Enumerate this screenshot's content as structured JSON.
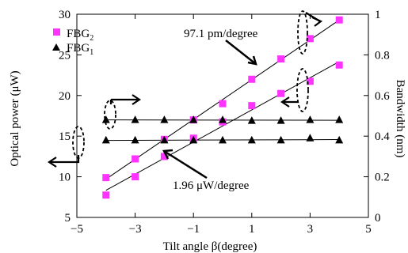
{
  "chart_data": {
    "type": "scatter",
    "xlabel": "Tilt angle β(degree)",
    "ylabel_left": "Optical power (μW)",
    "ylabel_right": "Bandwidth (nm)",
    "xlim": [
      -5,
      5
    ],
    "ylim_left": [
      5,
      30
    ],
    "ylim_right": [
      0,
      1
    ],
    "xticks": [
      -5,
      -3,
      -1,
      1,
      3,
      5
    ],
    "xtick_labels": [
      "−5",
      "−3",
      "−1",
      "1",
      "3",
      "5"
    ],
    "yticks_left": [
      5,
      10,
      15,
      20,
      25,
      30
    ],
    "yticks_right": [
      0,
      0.2,
      0.4,
      0.6,
      0.8,
      1
    ],
    "yticks_right_labels": [
      "0",
      "0.2",
      "0.4",
      "0.6",
      "0.8",
      "1"
    ],
    "grid": false,
    "legend_position": "top-left",
    "legend": [
      {
        "series": "FBG2",
        "base": "FBG",
        "sub": "2",
        "marker": "square",
        "color": "#ff33ff"
      },
      {
        "series": "FBG1",
        "base": "FBG",
        "sub": "1",
        "marker": "triangle",
        "color": "#000000"
      }
    ],
    "x": [
      -4,
      -3,
      -2,
      -1,
      0,
      1,
      2,
      3,
      4
    ],
    "series": [
      {
        "name": "FBG2",
        "marker": "square",
        "color": "#ff33ff",
        "axis": "left",
        "values": [
          9.9,
          12.2,
          14.6,
          17.0,
          19.0,
          22.0,
          24.5,
          27.0,
          29.3
        ]
      },
      {
        "name": "FBG2",
        "marker": "square",
        "color": "#ff33ff",
        "axis": "right",
        "values": [
          0.11,
          0.2,
          0.3,
          0.39,
          0.47,
          0.55,
          0.61,
          0.67,
          0.75
        ]
      },
      {
        "name": "FBG1",
        "marker": "triangle",
        "color": "#000000",
        "axis": "left",
        "values": [
          17.0,
          17.0,
          17.0,
          17.0,
          17.0,
          16.9,
          16.9,
          17.0,
          17.0
        ]
      },
      {
        "name": "FBG1",
        "marker": "triangle",
        "color": "#000000",
        "axis": "right",
        "values": [
          0.38,
          0.38,
          0.38,
          0.38,
          0.38,
          0.38,
          0.38,
          0.39,
          0.38
        ]
      }
    ],
    "annotations": [
      {
        "text": "97.1 pm/degree"
      },
      {
        "text": "1.96 μW/degree"
      }
    ]
  }
}
